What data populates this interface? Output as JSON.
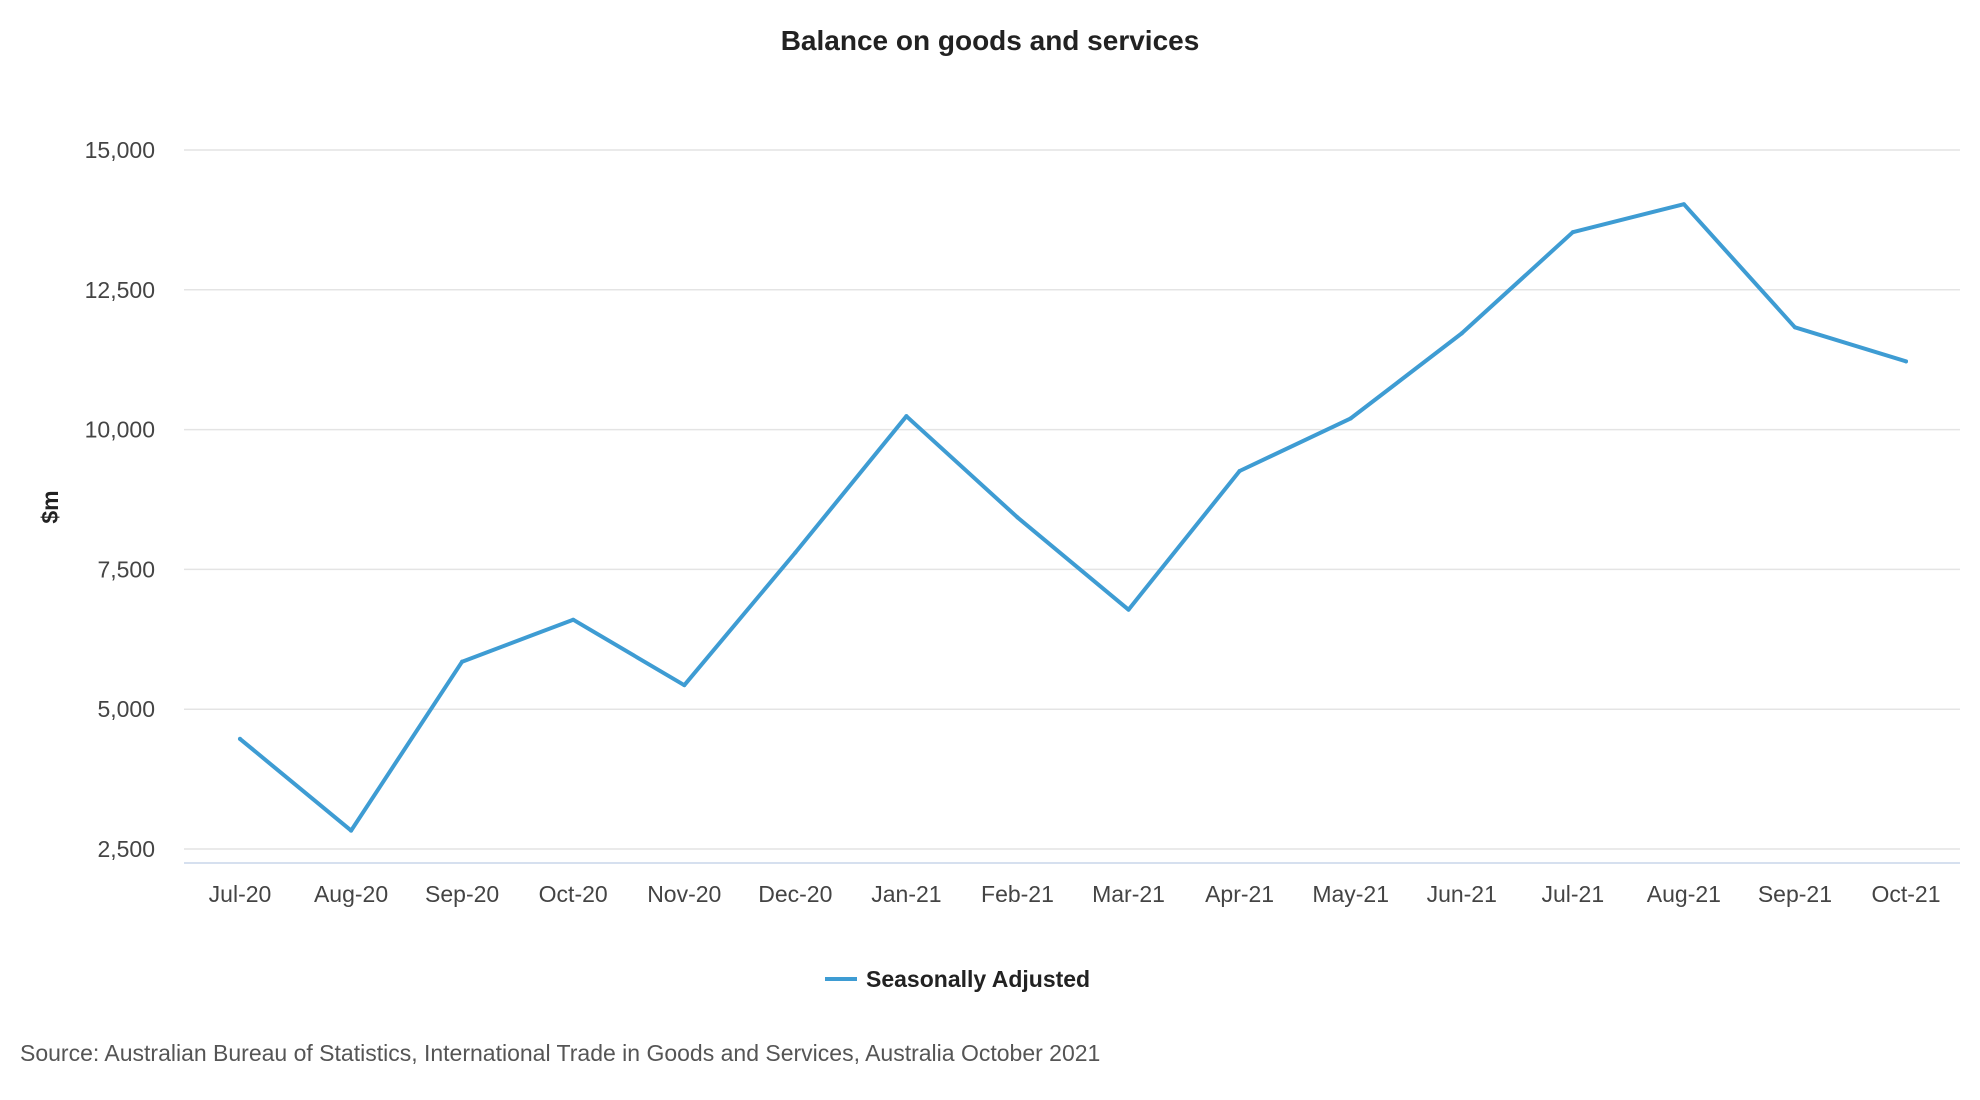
{
  "chart_data": {
    "type": "line",
    "title": "Balance on goods and services",
    "xlabel": "",
    "ylabel": "$m",
    "categories": [
      "Jul-20",
      "Aug-20",
      "Sep-20",
      "Oct-20",
      "Nov-20",
      "Dec-20",
      "Jan-21",
      "Feb-21",
      "Mar-21",
      "Apr-21",
      "May-21",
      "Jun-21",
      "Jul-21",
      "Aug-21",
      "Sep-21",
      "Oct-21"
    ],
    "series": [
      {
        "name": "Seasonally Adjusted",
        "color": "#3e9cd3",
        "values": [
          4470,
          2830,
          5850,
          6600,
          5430,
          7800,
          10240,
          8430,
          6780,
          9260,
          10200,
          11720,
          13530,
          14030,
          11830,
          11220
        ]
      }
    ],
    "y_ticks": [
      2500,
      5000,
      7500,
      10000,
      12500,
      15000
    ],
    "y_tick_labels": [
      "2,500",
      "5,000",
      "7,500",
      "10,000",
      "12,500",
      "15,000"
    ],
    "ylim": [
      2250,
      15000
    ],
    "grid": true,
    "legend_position": "bottom-center"
  },
  "source": "Source: Australian Bureau of Statistics, International Trade in Goods and Services, Australia October 2021"
}
